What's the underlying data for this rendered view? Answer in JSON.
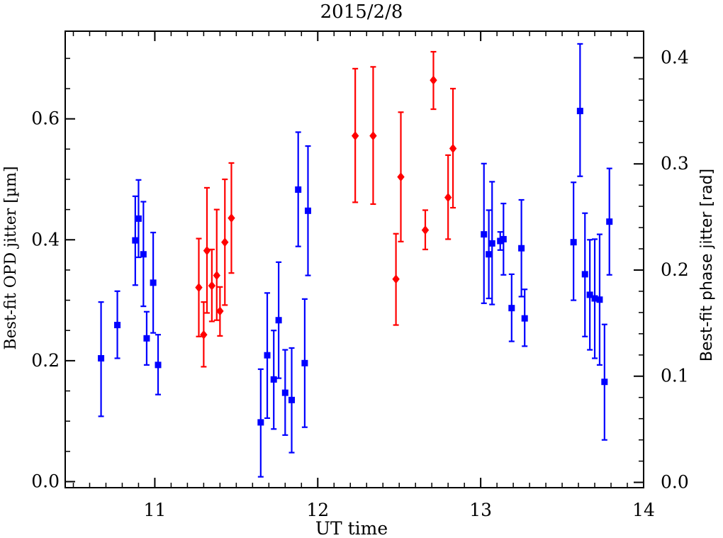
{
  "chart_data": {
    "type": "scatter",
    "title": "2015/2/8",
    "xlabel": "UT time",
    "ylabel_left": "Best-fit OPD jitter [µm]",
    "ylabel_right": "Best-fit phase jitter [rad]",
    "xlim": [
      10.45,
      14.0
    ],
    "ylim_left": [
      -0.01,
      0.745
    ],
    "ylim_right": [
      -0.005,
      0.425
    ],
    "x_ticks": [
      11,
      12,
      13,
      14
    ],
    "y_left_ticks": [
      "0.0",
      "0.2",
      "0.4",
      "0.6"
    ],
    "y_right_ticks": [
      "0.0",
      "0.1",
      "0.2",
      "0.3",
      "0.4"
    ],
    "series": [
      {
        "color": "#0000ff",
        "marker": "square",
        "points": [
          {
            "x": 10.67,
            "y": 0.204,
            "lo": 0.108,
            "hi": 0.297
          },
          {
            "x": 10.77,
            "y": 0.259,
            "lo": 0.204,
            "hi": 0.315
          },
          {
            "x": 10.88,
            "y": 0.399,
            "lo": 0.325,
            "hi": 0.472
          },
          {
            "x": 10.9,
            "y": 0.435,
            "lo": 0.371,
            "hi": 0.499
          },
          {
            "x": 10.93,
            "y": 0.376,
            "lo": 0.29,
            "hi": 0.463
          },
          {
            "x": 10.95,
            "y": 0.237,
            "lo": 0.193,
            "hi": 0.281
          },
          {
            "x": 10.99,
            "y": 0.329,
            "lo": 0.246,
            "hi": 0.412
          },
          {
            "x": 11.02,
            "y": 0.193,
            "lo": 0.144,
            "hi": 0.243
          },
          {
            "x": 11.65,
            "y": 0.098,
            "lo": 0.008,
            "hi": 0.186
          },
          {
            "x": 11.69,
            "y": 0.209,
            "lo": 0.105,
            "hi": 0.312
          },
          {
            "x": 11.73,
            "y": 0.169,
            "lo": 0.087,
            "hi": 0.25
          },
          {
            "x": 11.76,
            "y": 0.267,
            "lo": 0.171,
            "hi": 0.363
          },
          {
            "x": 11.8,
            "y": 0.147,
            "lo": 0.077,
            "hi": 0.218
          },
          {
            "x": 11.84,
            "y": 0.135,
            "lo": 0.048,
            "hi": 0.221
          },
          {
            "x": 11.88,
            "y": 0.483,
            "lo": 0.389,
            "hi": 0.578
          },
          {
            "x": 11.92,
            "y": 0.196,
            "lo": 0.09,
            "hi": 0.302
          },
          {
            "x": 11.94,
            "y": 0.448,
            "lo": 0.341,
            "hi": 0.555
          },
          {
            "x": 13.02,
            "y": 0.409,
            "lo": 0.295,
            "hi": 0.526
          },
          {
            "x": 13.05,
            "y": 0.376,
            "lo": 0.303,
            "hi": 0.449
          },
          {
            "x": 13.07,
            "y": 0.394,
            "lo": 0.293,
            "hi": 0.496
          },
          {
            "x": 13.12,
            "y": 0.398,
            "lo": 0.383,
            "hi": 0.413
          },
          {
            "x": 13.14,
            "y": 0.401,
            "lo": 0.342,
            "hi": 0.46
          },
          {
            "x": 13.19,
            "y": 0.287,
            "lo": 0.232,
            "hi": 0.343
          },
          {
            "x": 13.25,
            "y": 0.386,
            "lo": 0.306,
            "hi": 0.466
          },
          {
            "x": 13.27,
            "y": 0.27,
            "lo": 0.224,
            "hi": 0.318
          },
          {
            "x": 13.57,
            "y": 0.396,
            "lo": 0.3,
            "hi": 0.495
          },
          {
            "x": 13.61,
            "y": 0.613,
            "lo": 0.505,
            "hi": 0.724
          },
          {
            "x": 13.64,
            "y": 0.343,
            "lo": 0.24,
            "hi": 0.444
          },
          {
            "x": 13.67,
            "y": 0.309,
            "lo": 0.218,
            "hi": 0.4
          },
          {
            "x": 13.7,
            "y": 0.303,
            "lo": 0.204,
            "hi": 0.401
          },
          {
            "x": 13.73,
            "y": 0.301,
            "lo": 0.193,
            "hi": 0.409
          },
          {
            "x": 13.76,
            "y": 0.165,
            "lo": 0.069,
            "hi": 0.26
          },
          {
            "x": 13.79,
            "y": 0.43,
            "lo": 0.342,
            "hi": 0.518
          }
        ]
      },
      {
        "color": "#ff0000",
        "marker": "diamond",
        "points": [
          {
            "x": 11.27,
            "y": 0.321,
            "lo": 0.24,
            "hi": 0.402
          },
          {
            "x": 11.3,
            "y": 0.243,
            "lo": 0.19,
            "hi": 0.297
          },
          {
            "x": 11.32,
            "y": 0.382,
            "lo": 0.279,
            "hi": 0.486
          },
          {
            "x": 11.35,
            "y": 0.324,
            "lo": 0.265,
            "hi": 0.384
          },
          {
            "x": 11.38,
            "y": 0.341,
            "lo": 0.267,
            "hi": 0.45
          },
          {
            "x": 11.4,
            "y": 0.282,
            "lo": 0.241,
            "hi": 0.322
          },
          {
            "x": 11.43,
            "y": 0.396,
            "lo": 0.292,
            "hi": 0.5
          },
          {
            "x": 11.47,
            "y": 0.436,
            "lo": 0.345,
            "hi": 0.527
          },
          {
            "x": 12.23,
            "y": 0.572,
            "lo": 0.462,
            "hi": 0.683
          },
          {
            "x": 12.34,
            "y": 0.572,
            "lo": 0.459,
            "hi": 0.686
          },
          {
            "x": 12.48,
            "y": 0.335,
            "lo": 0.259,
            "hi": 0.41
          },
          {
            "x": 12.51,
            "y": 0.504,
            "lo": 0.397,
            "hi": 0.611
          },
          {
            "x": 12.66,
            "y": 0.416,
            "lo": 0.384,
            "hi": 0.449
          },
          {
            "x": 12.71,
            "y": 0.664,
            "lo": 0.616,
            "hi": 0.711
          },
          {
            "x": 12.8,
            "y": 0.47,
            "lo": 0.401,
            "hi": 0.54
          },
          {
            "x": 12.83,
            "y": 0.551,
            "lo": 0.453,
            "hi": 0.65
          }
        ]
      }
    ]
  }
}
